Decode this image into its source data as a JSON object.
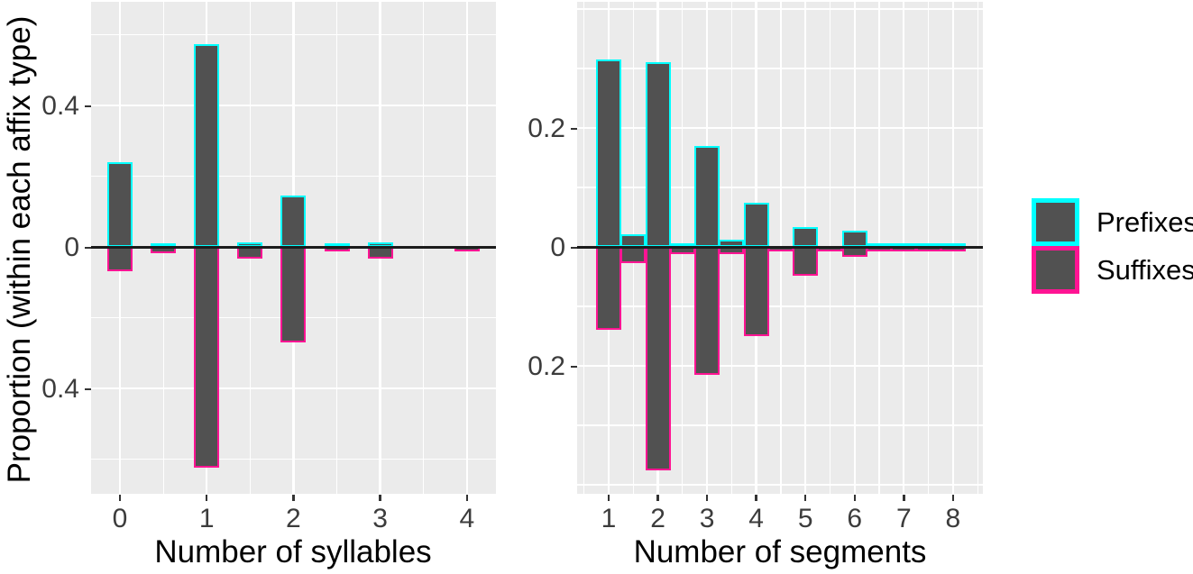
{
  "figure": {
    "y_axis_title": "Proportion (within each affix type)",
    "legend": {
      "items": [
        {
          "label": "Prefixes",
          "outline_color": "#00ffff"
        },
        {
          "label": "Suffixes",
          "outline_color": "#ff1493"
        }
      ]
    },
    "colors": {
      "bar_fill": "#515151",
      "prefix_outline": "#00ffff",
      "suffix_outline": "#ff1493",
      "panel_background": "#ebebeb",
      "gridline": "#ffffff",
      "zero_line": "#1c1c1c",
      "tick_text": "#3c3c3c",
      "title_text": "#000000"
    }
  },
  "chart_data": [
    {
      "type": "bar",
      "panel": "left",
      "title": "",
      "xlabel": "Number of syllables",
      "ylabel": "Proportion (within each affix type)",
      "orientation": "mirrored: Prefixes plotted upward, Suffixes plotted downward from zero",
      "x": [
        0,
        0.5,
        1,
        1.5,
        2,
        2.5,
        3,
        3.5,
        4
      ],
      "series": [
        {
          "name": "Prefixes",
          "direction": "up",
          "values": [
            0.24,
            0.01,
            0.575,
            0.012,
            0.145,
            0.008,
            0.012,
            0,
            0
          ]
        },
        {
          "name": "Suffixes",
          "direction": "down",
          "values": [
            0.07,
            0.018,
            0.625,
            0.032,
            0.27,
            0.002,
            0.034,
            0,
            0.003
          ]
        }
      ],
      "x_ticks": [
        {
          "value": 0,
          "label": "0"
        },
        {
          "value": 1,
          "label": "1"
        },
        {
          "value": 2,
          "label": "2"
        },
        {
          "value": 3,
          "label": "3"
        },
        {
          "value": 4,
          "label": "4"
        }
      ],
      "y_ticks": [
        {
          "value": 0.4,
          "label": "0.4"
        },
        {
          "value": 0,
          "label": "0"
        },
        {
          "value": -0.4,
          "label": "0.4"
        }
      ],
      "y_gridlines_major": [
        0.4,
        0,
        -0.4
      ],
      "y_gridlines_minor": [
        0.6,
        0.2,
        -0.2,
        -0.6
      ],
      "x_gridlines_minor": [
        0.5,
        1.5,
        2.5,
        3.5
      ],
      "ylim": [
        -0.69,
        0.69
      ],
      "grid": true
    },
    {
      "type": "bar",
      "panel": "right",
      "title": "",
      "xlabel": "Number of segments",
      "ylabel": "Proportion (within each affix type)",
      "orientation": "mirrored: Prefixes plotted upward, Suffixes plotted downward from zero",
      "x": [
        1,
        1.5,
        2,
        2.5,
        3,
        3.5,
        4,
        4.5,
        5,
        5.5,
        6,
        6.5,
        7,
        7.5,
        8
      ],
      "series": [
        {
          "name": "Prefixes",
          "direction": "up",
          "values": [
            0.315,
            0.021,
            0.31,
            0.005,
            0.17,
            0.012,
            0.074,
            0,
            0.033,
            0,
            0.027,
            0.001,
            0.003,
            0.001,
            0.002
          ]
        },
        {
          "name": "Suffixes",
          "direction": "down",
          "values": [
            0.14,
            0.028,
            0.375,
            0.012,
            0.215,
            0.012,
            0.15,
            0.002,
            0.048,
            0.003,
            0.016,
            0.002,
            0.007,
            0.002,
            0.004
          ]
        }
      ],
      "x_ticks": [
        {
          "value": 1,
          "label": "1"
        },
        {
          "value": 2,
          "label": "2"
        },
        {
          "value": 3,
          "label": "3"
        },
        {
          "value": 4,
          "label": "4"
        },
        {
          "value": 5,
          "label": "5"
        },
        {
          "value": 6,
          "label": "6"
        },
        {
          "value": 7,
          "label": "7"
        },
        {
          "value": 8,
          "label": "8"
        }
      ],
      "y_ticks": [
        {
          "value": 0.2,
          "label": "0.2"
        },
        {
          "value": 0,
          "label": "0"
        },
        {
          "value": -0.2,
          "label": "0.2"
        }
      ],
      "y_gridlines_major": [
        0.4,
        0.2,
        0,
        -0.2,
        -0.4
      ],
      "y_gridlines_minor": [
        0.3,
        0.1,
        -0.1,
        -0.3
      ],
      "x_gridlines_minor": [
        0.5,
        1.5,
        2.5,
        3.5,
        4.5,
        5.5,
        6.5,
        7.5,
        8.5
      ],
      "ylim": [
        -0.418,
        0.418
      ],
      "grid": true
    }
  ]
}
